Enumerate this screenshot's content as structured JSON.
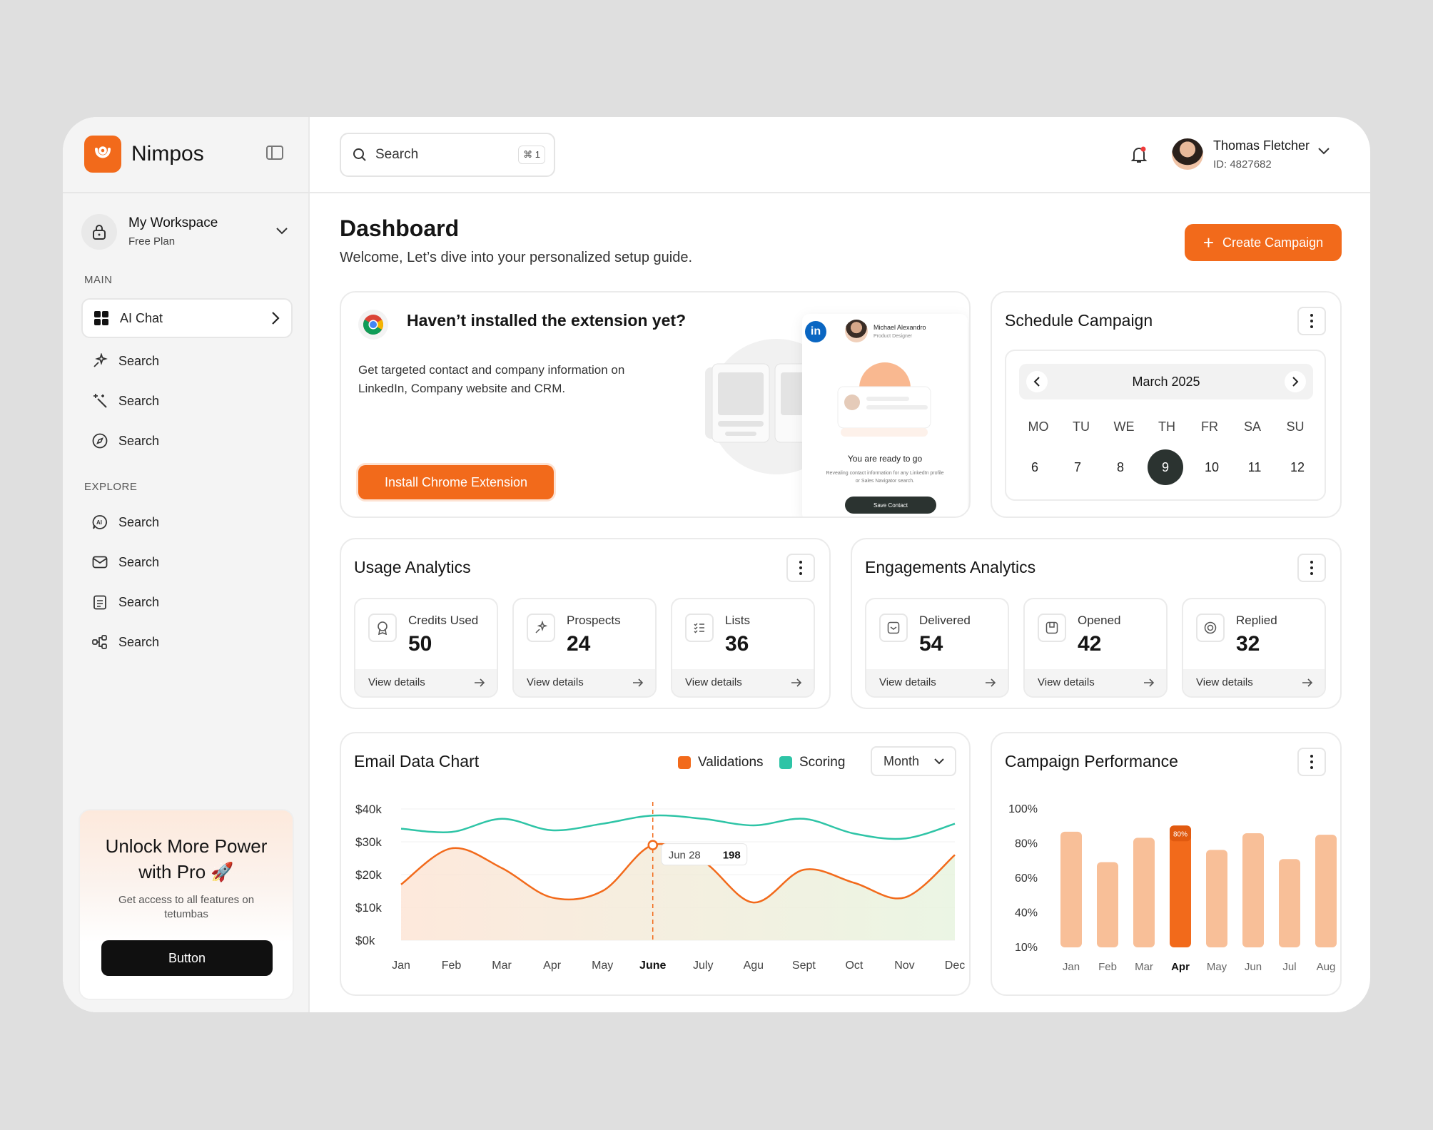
{
  "brand": {
    "name": "Nimpos",
    "accent": "#f26a1b"
  },
  "workspace": {
    "title": "My Workspace",
    "plan": "Free Plan"
  },
  "sidebar": {
    "main_label": "MAIN",
    "main_items": [
      {
        "label": "AI Chat",
        "icon": "grid-icon"
      },
      {
        "label": "Search",
        "icon": "sparkles-icon"
      },
      {
        "label": "Search",
        "icon": "magic-wand-icon"
      },
      {
        "label": "Search",
        "icon": "compass-icon"
      }
    ],
    "explore_label": "EXPLORE",
    "explore_items": [
      {
        "label": "Search",
        "icon": "ai-chat-icon"
      },
      {
        "label": "Search",
        "icon": "mail-icon"
      },
      {
        "label": "Search",
        "icon": "clipboard-icon"
      },
      {
        "label": "Search",
        "icon": "flow-icon"
      }
    ]
  },
  "promo": {
    "title": "Unlock More Power with Pro 🚀",
    "subtitle": "Get access to all features on tetumbas",
    "button": "Button"
  },
  "topbar": {
    "search_placeholder": "Search",
    "search_shortcut": "⌘ 1",
    "user": {
      "name": "Thomas Fletcher",
      "id": "ID: 4827682"
    }
  },
  "dashboard": {
    "title": "Dashboard",
    "subtitle": "Welcome, Let’s dive into your personalized setup guide.",
    "create_button": "Create Campaign"
  },
  "extension": {
    "title": "Haven’t installed the extension yet?",
    "description": "Get targeted contact and company information on LinkedIn, Company website and CRM.",
    "button": "Install Chrome Extension",
    "mock": {
      "name": "Michael Alexandro",
      "role": "Product Designer",
      "ready": "You are ready to go",
      "small": "Revealing contact information for any LinkedIn profile or Sales Navigator search.",
      "save": "Save Contact"
    }
  },
  "schedule": {
    "title": "Schedule Campaign",
    "month": "March 2025",
    "weekdays": [
      "MO",
      "TU",
      "WE",
      "TH",
      "FR",
      "SA",
      "SU"
    ],
    "days": [
      "6",
      "7",
      "8",
      "9",
      "10",
      "11",
      "12"
    ],
    "selected_day": "9"
  },
  "usage": {
    "title": "Usage Analytics",
    "stats": [
      {
        "label": "Credits Used",
        "value": "50",
        "link": "View details",
        "icon": "badge-icon"
      },
      {
        "label": "Prospects",
        "value": "24",
        "link": "View details",
        "icon": "sparkles-icon"
      },
      {
        "label": "Lists",
        "value": "36",
        "link": "View details",
        "icon": "list-icon"
      }
    ]
  },
  "engagement": {
    "title": "Engagements Analytics",
    "stats": [
      {
        "label": "Delivered",
        "value": "54",
        "link": "View details",
        "icon": "inbox-icon"
      },
      {
        "label": "Opened",
        "value": "42",
        "link": "View details",
        "icon": "open-mail-icon"
      },
      {
        "label": "Replied",
        "value": "32",
        "link": "View details",
        "icon": "reply-icon"
      }
    ]
  },
  "email_chart": {
    "title": "Email Data Chart",
    "legend": [
      {
        "name": "Validations",
        "color": "#f26a1b"
      },
      {
        "name": "Scoring",
        "color": "#2ec4a6"
      }
    ],
    "period": "Month",
    "tooltip": {
      "date": "Jun 28",
      "value": "198"
    }
  },
  "campaign_chart": {
    "title": "Campaign Performance"
  },
  "chart_data": [
    {
      "type": "line",
      "title": "Email Data Chart",
      "x": [
        "Jan",
        "Feb",
        "Mar",
        "Apr",
        "May",
        "June",
        "July",
        "Agu",
        "Sept",
        "Oct",
        "Nov",
        "Dec"
      ],
      "y_ticks": [
        "$40k",
        "$30k",
        "$20k",
        "$10k",
        "$0k"
      ],
      "ylim": [
        0,
        40000
      ],
      "highlight_x": "June",
      "series": [
        {
          "name": "Validations",
          "color": "#f26a1b",
          "values": [
            17000,
            28000,
            22000,
            13000,
            15000,
            29000,
            24000,
            11500,
            21500,
            17500,
            13000,
            26000
          ]
        },
        {
          "name": "Scoring",
          "color": "#2ec4a6",
          "values": [
            34000,
            33000,
            37000,
            33500,
            35500,
            38000,
            37000,
            35000,
            37000,
            32500,
            31000,
            35500
          ]
        }
      ]
    },
    {
      "type": "bar",
      "title": "Campaign Performance",
      "categories": [
        "Jan",
        "Feb",
        "Mar",
        "Apr",
        "May",
        "Jun",
        "Jul",
        "Aug"
      ],
      "values": [
        76,
        56,
        72,
        80,
        64,
        75,
        58,
        74
      ],
      "y_ticks": [
        "100%",
        "80%",
        "60%",
        "40%",
        "10%"
      ],
      "highlight": "Apr",
      "highlight_label": "80%",
      "colors": {
        "bar": "#f8bf98",
        "highlight": "#f26a1b"
      }
    }
  ]
}
